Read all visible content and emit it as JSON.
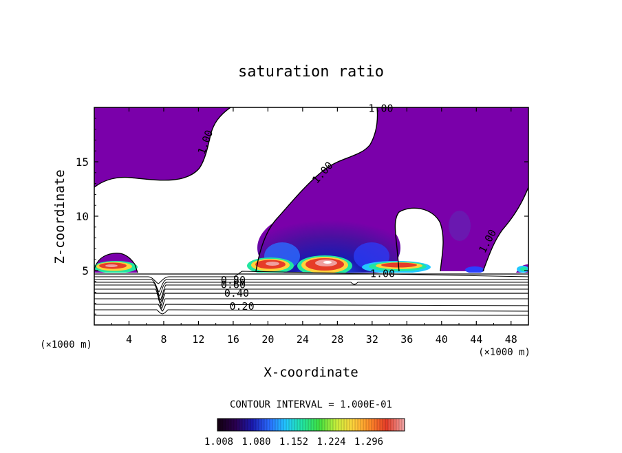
{
  "chart_data": {
    "type": "heatmap",
    "title": "saturation ratio",
    "xlabel": "X-coordinate",
    "ylabel": "Z-coordinate",
    "x_unit_left": "(×1000 m)",
    "x_unit_right": "(×1000 m)",
    "xlim": [
      0,
      50
    ],
    "ylim": [
      0,
      20
    ],
    "x_ticks": [
      4,
      8,
      12,
      16,
      20,
      24,
      28,
      32,
      36,
      40,
      44,
      48
    ],
    "y_ticks": [
      5,
      10,
      15
    ],
    "contour_interval_text": "CONTOUR INTERVAL = 1.000E-01",
    "contour_labels": [
      {
        "text": "1.00",
        "x": 33,
        "y": 19.9
      },
      {
        "text": "1.00",
        "x": 12.8,
        "y": 16.8
      },
      {
        "text": "1.00",
        "x": 26.3,
        "y": 14.0
      },
      {
        "text": "1.00",
        "x": 45.3,
        "y": 7.7
      },
      {
        "text": "1.00",
        "x": 33.2,
        "y": 4.7
      },
      {
        "text": "0.80",
        "x": 16.0,
        "y": 4.1
      },
      {
        "text": "0.60",
        "x": 16.0,
        "y": 3.7
      },
      {
        "text": "0.40",
        "x": 16.4,
        "y": 2.9
      },
      {
        "text": "0.20",
        "x": 17.0,
        "y": 1.7
      }
    ],
    "colorbar": {
      "ticks": [
        "1.008",
        "1.080",
        "1.152",
        "1.224",
        "1.296"
      ],
      "colors": [
        "#140014",
        "#2a0050",
        "#1a1ab0",
        "#2a6cff",
        "#22c8ff",
        "#22e6a0",
        "#40e040",
        "#c8f03c",
        "#ffd23c",
        "#ff8c28",
        "#e63c28",
        "#f0a0a0"
      ]
    },
    "regions": {
      "supersat_color": "#7a00aa",
      "subsat_color": "#ffffff"
    }
  }
}
